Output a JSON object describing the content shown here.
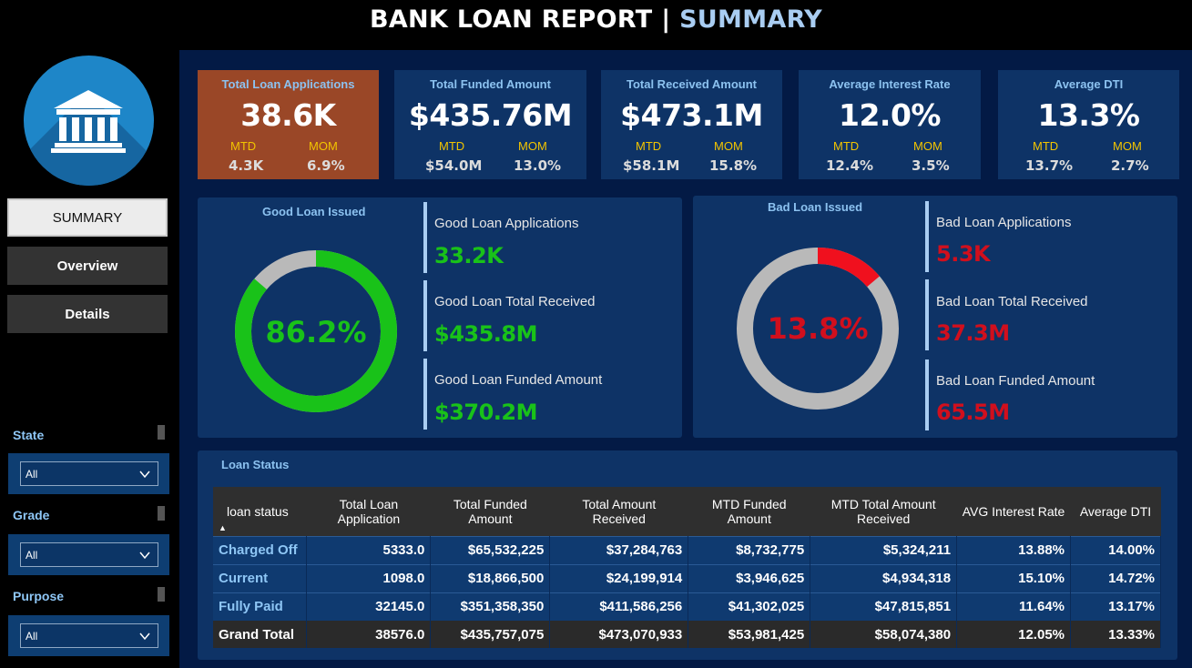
{
  "header": {
    "title_main": "BANK LOAN REPORT",
    "title_sep": "|",
    "title_accent": "SUMMARY"
  },
  "nav": {
    "items": [
      {
        "label": "SUMMARY",
        "active": true
      },
      {
        "label": "Overview",
        "active": false
      },
      {
        "label": "Details",
        "active": false
      }
    ]
  },
  "filters": [
    {
      "label": "State",
      "value": "All"
    },
    {
      "label": "Grade",
      "value": "All"
    },
    {
      "label": "Purpose",
      "value": "All"
    }
  ],
  "kpis": [
    {
      "title": "Total Loan Applications",
      "value": "38.6K",
      "mtd_label": "MTD",
      "mtd": "4.3K",
      "mom_label": "MOM",
      "mom": "6.9%"
    },
    {
      "title": "Total Funded Amount",
      "value": "$435.76M",
      "mtd_label": "MTD",
      "mtd": "$54.0M",
      "mom_label": "MOM",
      "mom": "13.0%"
    },
    {
      "title": "Total Received Amount",
      "value": "$473.1M",
      "mtd_label": "MTD",
      "mtd": "$58.1M",
      "mom_label": "MOM",
      "mom": "15.8%"
    },
    {
      "title": "Average Interest Rate",
      "value": "12.0%",
      "mtd_label": "MTD",
      "mtd": "12.4%",
      "mom_label": "MOM",
      "mom": "3.5%"
    },
    {
      "title": "Average DTI",
      "value": "13.3%",
      "mtd_label": "MTD",
      "mtd": "13.7%",
      "mom_label": "MOM",
      "mom": "2.7%"
    }
  ],
  "good_loan": {
    "title": "Good Loan Issued",
    "percent_label": "86.2%",
    "percent": 86.2,
    "color": "#19c219",
    "stats": [
      {
        "label": "Good Loan Applications",
        "value": "33.2K"
      },
      {
        "label": "Good Loan Total Received",
        "value": "$435.8M"
      },
      {
        "label": "Good Loan Funded Amount",
        "value": "$370.2M"
      }
    ]
  },
  "bad_loan": {
    "title": "Bad Loan Issued",
    "percent_label": "13.8%",
    "percent": 13.8,
    "color": "#f0101e",
    "stats": [
      {
        "label": "Bad Loan Applications",
        "value": "5.3K"
      },
      {
        "label": "Bad Loan Total Received",
        "value": "37.3M"
      },
      {
        "label": "Bad Loan Funded Amount",
        "value": "65.5M"
      }
    ]
  },
  "loan_status": {
    "title": "Loan Status",
    "columns": [
      "loan status",
      "Total Loan Application",
      "Total Funded Amount",
      "Total Amount Received",
      "MTD Funded Amount",
      "MTD Total Amount Received",
      "AVG Interest Rate",
      "Average DTI"
    ],
    "rows": [
      [
        "Charged Off",
        "5333.0",
        "$65,532,225",
        "$37,284,763",
        "$8,732,775",
        "$5,324,211",
        "13.88%",
        "14.00%"
      ],
      [
        "Current",
        "1098.0",
        "$18,866,500",
        "$24,199,914",
        "$3,946,625",
        "$4,934,318",
        "15.10%",
        "14.72%"
      ],
      [
        "Fully Paid",
        "32145.0",
        "$351,358,350",
        "$411,586,256",
        "$41,302,025",
        "$47,815,851",
        "11.64%",
        "13.17%"
      ]
    ],
    "total": [
      "Grand Total",
      "38576.0",
      "$435,757,075",
      "$473,070,933",
      "$53,981,425",
      "$58,074,380",
      "12.05%",
      "13.33%"
    ]
  }
}
